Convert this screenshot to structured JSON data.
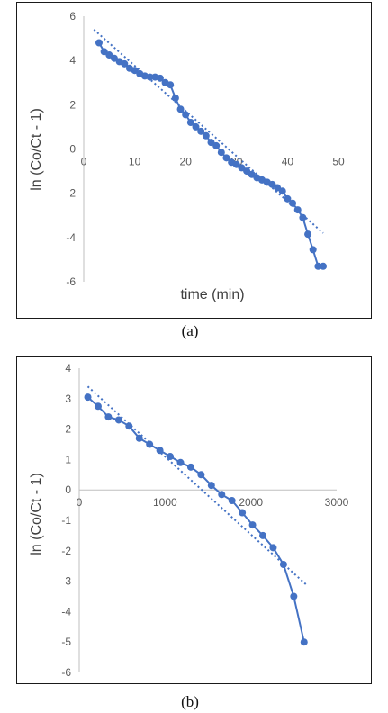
{
  "figure": {
    "captions": [
      "(a)",
      "(b)"
    ]
  },
  "colors": {
    "series": "#4472c4",
    "axis": "#bfbfbf",
    "tick_text": "#595959",
    "title_text": "#404040"
  },
  "chart_data": [
    {
      "type": "scatter",
      "title": "",
      "xlabel": "time (min)",
      "ylabel": "ln (Co/Ct - 1)",
      "xlim": [
        0,
        50
      ],
      "ylim": [
        -6,
        6
      ],
      "xticks": [
        0,
        10,
        20,
        30,
        40,
        50
      ],
      "yticks": [
        -6,
        -4,
        -2,
        0,
        2,
        4,
        6
      ],
      "grid": false,
      "legend": "none",
      "series": [
        {
          "kind": "markers+line",
          "x": [
            3,
            4,
            5,
            6,
            7,
            8,
            9,
            10,
            11,
            12,
            13,
            14,
            15,
            16,
            17,
            18,
            19,
            20,
            21,
            22,
            23,
            24,
            25,
            26,
            27,
            28,
            29,
            30,
            31,
            32,
            33,
            34,
            35,
            36,
            37,
            38,
            39,
            40,
            41,
            42,
            43,
            44,
            45,
            46,
            47
          ],
          "y": [
            4.8,
            4.4,
            4.25,
            4.1,
            3.95,
            3.85,
            3.65,
            3.55,
            3.4,
            3.3,
            3.25,
            3.25,
            3.2,
            3.0,
            2.9,
            2.3,
            1.8,
            1.55,
            1.2,
            1.0,
            0.8,
            0.6,
            0.3,
            0.15,
            -0.15,
            -0.4,
            -0.6,
            -0.7,
            -0.85,
            -1.0,
            -1.15,
            -1.3,
            -1.4,
            -1.5,
            -1.6,
            -1.75,
            -1.9,
            -2.25,
            -2.45,
            -2.75,
            -3.1,
            -3.85,
            -4.55,
            -5.3,
            -5.3
          ]
        },
        {
          "kind": "linear-trendline",
          "x": [
            2,
            47
          ],
          "y": [
            5.4,
            -3.8
          ]
        }
      ]
    },
    {
      "type": "scatter",
      "title": "",
      "xlabel": "",
      "ylabel": "ln (Co/Ct - 1)",
      "xlim": [
        0,
        3000
      ],
      "ylim": [
        -6,
        4
      ],
      "xticks": [
        0,
        1000,
        2000,
        3000
      ],
      "yticks": [
        -6,
        -5,
        -4,
        -3,
        -2,
        -1,
        0,
        1,
        2,
        3,
        4
      ],
      "grid": false,
      "legend": "none",
      "series": [
        {
          "kind": "markers+line",
          "x": [
            100,
            220,
            340,
            460,
            580,
            700,
            820,
            940,
            1060,
            1180,
            1300,
            1420,
            1540,
            1660,
            1780,
            1900,
            2020,
            2140,
            2260,
            2380,
            2500,
            2620
          ],
          "y": [
            3.05,
            2.75,
            2.4,
            2.3,
            2.1,
            1.7,
            1.5,
            1.3,
            1.1,
            0.9,
            0.75,
            0.5,
            0.15,
            -0.15,
            -0.35,
            -0.75,
            -1.15,
            -1.5,
            -1.9,
            -2.45,
            -3.5,
            -5.0
          ]
        },
        {
          "kind": "linear-trendline",
          "x": [
            100,
            2640
          ],
          "y": [
            3.4,
            -3.1
          ]
        }
      ]
    }
  ]
}
